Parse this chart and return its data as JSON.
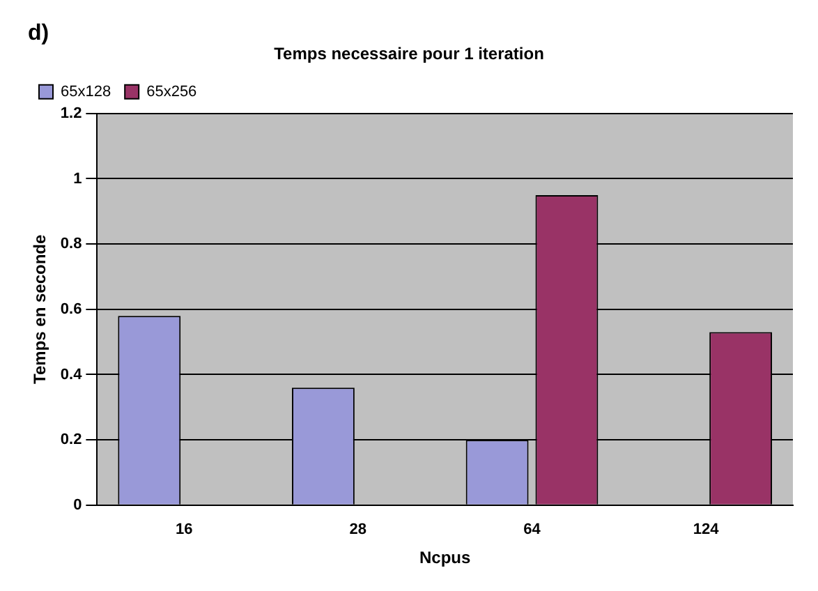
{
  "chart_data": {
    "type": "bar",
    "title": "Temps necessaire pour 1 iteration",
    "xlabel": "Ncpus",
    "ylabel": "Temps en seconde",
    "annotations": [
      "d)"
    ],
    "categories": [
      "16",
      "28",
      "64",
      "124"
    ],
    "series": [
      {
        "name": "65x128",
        "color": "#9999d8",
        "values": [
          0.58,
          0.36,
          0.2,
          null
        ]
      },
      {
        "name": "65x256",
        "color": "#993366",
        "values": [
          null,
          null,
          0.95,
          0.53
        ]
      }
    ],
    "ylim": [
      0,
      1.2
    ],
    "yticks": [
      0,
      0.2,
      0.4,
      0.6,
      0.8,
      1,
      1.2
    ],
    "grid": "y",
    "legend": "top left"
  }
}
